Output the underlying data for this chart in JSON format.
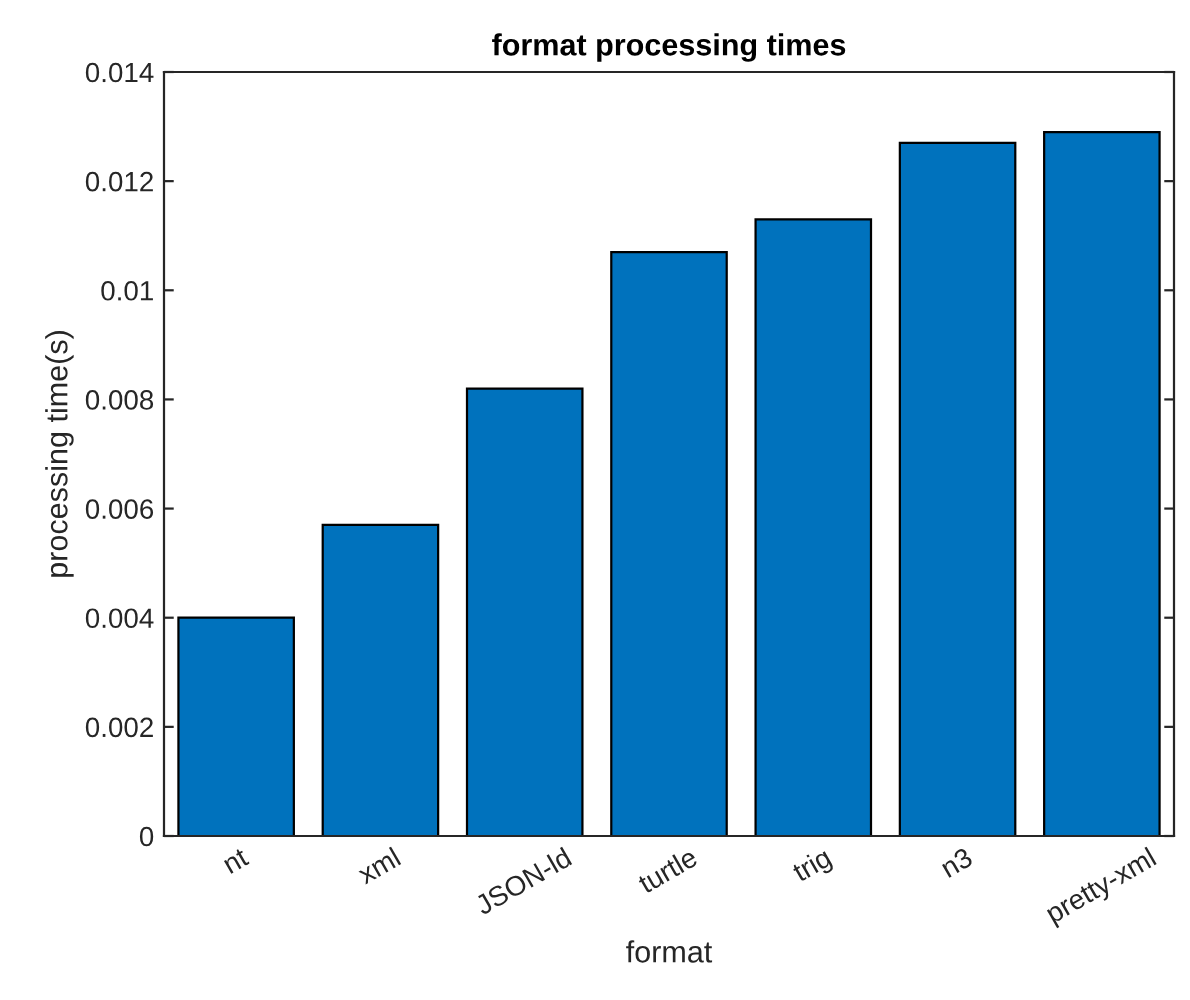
{
  "chart_data": {
    "type": "bar",
    "title": "format processing times",
    "xlabel": "format",
    "ylabel": "processing time(s)",
    "categories": [
      "nt",
      "xml",
      "JSON-ld",
      "turtle",
      "trig",
      "n3",
      "pretty-xml"
    ],
    "values": [
      0.004,
      0.0057,
      0.0082,
      0.0107,
      0.0113,
      0.0127,
      0.0129
    ],
    "color": "#0072bd",
    "ylim": [
      0,
      0.014
    ],
    "yticks": [
      0,
      0.002,
      0.004,
      0.006,
      0.008,
      0.01,
      0.012,
      0.014
    ],
    "grid": false,
    "legend": false
  }
}
